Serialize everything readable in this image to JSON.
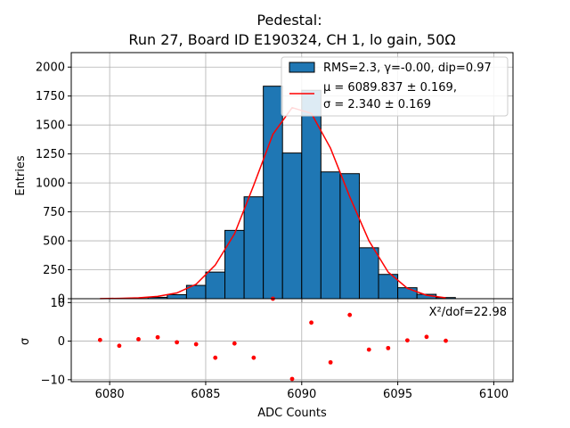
{
  "chart_data": [
    {
      "type": "bar",
      "title": "Pedestal:",
      "subtitle": "Run 27, Board ID E190324, CH 1, lo gain, 50Ω",
      "xlabel": "",
      "ylabel": "Entries",
      "xlim": [
        6078,
        6101
      ],
      "ylim": [
        0,
        2125
      ],
      "yticks": [
        0,
        250,
        500,
        750,
        1000,
        1250,
        1500,
        1750,
        2000
      ],
      "ytick_labels": [
        "0",
        "250",
        "500",
        "750",
        "1000",
        "1250",
        "1500",
        "1750",
        "2000"
      ],
      "grid": true,
      "legend_position": "top-right",
      "bars": {
        "name": "RMS=2.3, γ=-0.00, dip=0.97",
        "color": "#1f77b4",
        "bin_lefts": [
          6079,
          6080,
          6081,
          6082,
          6083,
          6084,
          6085,
          6086,
          6087,
          6088,
          6089,
          6090,
          6091,
          6092,
          6093,
          6094,
          6095,
          6096,
          6097,
          6098,
          6099
        ],
        "values": [
          0,
          0,
          2,
          12,
          35,
          115,
          230,
          590,
          880,
          1835,
          1258,
          1800,
          1095,
          1080,
          440,
          210,
          95,
          38,
          10,
          0,
          0
        ]
      },
      "fit": {
        "name_line1": "μ = 6089.837 ± 0.169,",
        "name_line2": "σ = 2.340 ± 0.169",
        "color": "#ff0000",
        "x": [
          6079.5,
          6080.5,
          6081.5,
          6082.5,
          6083.5,
          6084.5,
          6085.5,
          6086.5,
          6087.5,
          6088.5,
          6089.5,
          6090.5,
          6091.5,
          6092.5,
          6093.5,
          6094.5,
          6095.5,
          6096.5,
          6097.5
        ],
        "y": [
          1,
          3,
          8,
          20,
          50,
          125,
          290,
          560,
          980,
          1420,
          1650,
          1600,
          1300,
          880,
          500,
          230,
          90,
          30,
          8
        ]
      }
    },
    {
      "type": "scatter",
      "xlabel": "ADC Counts",
      "ylabel": "σ",
      "xlim": [
        6078,
        6101
      ],
      "ylim": [
        -10.5,
        11
      ],
      "xticks": [
        6080,
        6085,
        6090,
        6095,
        6100
      ],
      "xtick_labels": [
        "6080",
        "6085",
        "6090",
        "6095",
        "6100"
      ],
      "yticks": [
        -10,
        0,
        10
      ],
      "ytick_labels": [
        "−10",
        "0",
        "10"
      ],
      "grid": true,
      "annotation": "X²/dof=22.98",
      "color": "#ff0000",
      "points": {
        "x": [
          6079.5,
          6080.5,
          6081.5,
          6082.5,
          6083.5,
          6084.5,
          6085.5,
          6086.5,
          6087.5,
          6088.5,
          6089.5,
          6090.5,
          6091.5,
          6092.5,
          6093.5,
          6094.5,
          6095.5,
          6096.5,
          6097.5
        ],
        "y": [
          0.3,
          -1.2,
          0.5,
          1.0,
          -0.3,
          -0.8,
          -4.3,
          -0.6,
          -4.3,
          11.0,
          -9.8,
          4.8,
          -5.5,
          6.8,
          -2.2,
          -1.8,
          0.2,
          1.1,
          0.1
        ]
      }
    }
  ]
}
